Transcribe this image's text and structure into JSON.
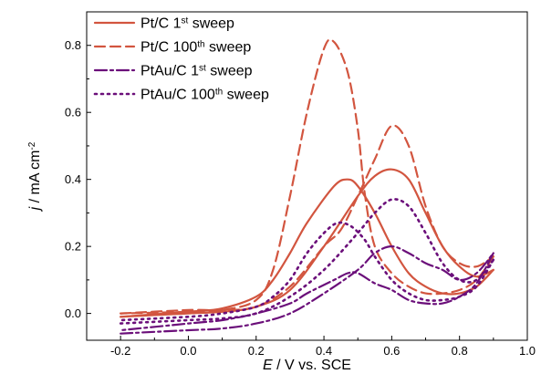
{
  "chart_data": {
    "type": "line",
    "xlabel": {
      "symbol": "E",
      "rest": " / V vs. SCE"
    },
    "ylabel": {
      "symbol": "j",
      "rest": " / mA cm",
      "sup": "-2"
    },
    "xlim": [
      -0.3,
      1.0
    ],
    "ylim": [
      -0.08,
      0.9
    ],
    "x_ticks": [
      -0.2,
      0.0,
      0.2,
      0.4,
      0.6,
      0.8,
      1.0
    ],
    "y_ticks": [
      0.0,
      0.2,
      0.4,
      0.6,
      0.8
    ],
    "x_tick_labels": [
      "-0.2",
      "0.0",
      "0.2",
      "0.4",
      "0.6",
      "0.8",
      "1.0"
    ],
    "y_tick_labels": [
      "0.0",
      "0.2",
      "0.4",
      "0.6",
      "0.8"
    ],
    "grid": false,
    "legend_position": "top-left",
    "series": [
      {
        "name": "Pt/C 1st sweep",
        "label_main": "Pt/C 1",
        "label_sup": "st",
        "label_tail": " sweep",
        "color": "#d2553f",
        "dash": "solid",
        "forward": [
          [
            -0.2,
            -0.01
          ],
          [
            0.0,
            0.0
          ],
          [
            0.1,
            0.005
          ],
          [
            0.2,
            0.02
          ],
          [
            0.3,
            0.07
          ],
          [
            0.4,
            0.2
          ],
          [
            0.5,
            0.35
          ],
          [
            0.55,
            0.41
          ],
          [
            0.6,
            0.43
          ],
          [
            0.65,
            0.4
          ],
          [
            0.7,
            0.3
          ],
          [
            0.75,
            0.2
          ],
          [
            0.8,
            0.14
          ],
          [
            0.85,
            0.11
          ],
          [
            0.9,
            0.13
          ]
        ],
        "reverse": [
          [
            0.9,
            0.13
          ],
          [
            0.85,
            0.08
          ],
          [
            0.8,
            0.06
          ],
          [
            0.75,
            0.06
          ],
          [
            0.7,
            0.08
          ],
          [
            0.65,
            0.12
          ],
          [
            0.6,
            0.2
          ],
          [
            0.55,
            0.3
          ],
          [
            0.5,
            0.38
          ],
          [
            0.47,
            0.4
          ],
          [
            0.43,
            0.38
          ],
          [
            0.35,
            0.27
          ],
          [
            0.3,
            0.18
          ],
          [
            0.25,
            0.1
          ],
          [
            0.2,
            0.05
          ],
          [
            0.1,
            0.015
          ],
          [
            0.0,
            0.005
          ],
          [
            -0.2,
            -0.01
          ]
        ]
      },
      {
        "name": "Pt/C 100th sweep",
        "label_main": "Pt/C 100",
        "label_sup": "th",
        "label_tail": " sweep",
        "color": "#d2553f",
        "dash": "dashed",
        "forward": [
          [
            -0.2,
            0.0
          ],
          [
            0.0,
            0.01
          ],
          [
            0.1,
            0.01
          ],
          [
            0.2,
            0.02
          ],
          [
            0.3,
            0.08
          ],
          [
            0.4,
            0.2
          ],
          [
            0.45,
            0.25
          ],
          [
            0.5,
            0.35
          ],
          [
            0.55,
            0.46
          ],
          [
            0.6,
            0.56
          ],
          [
            0.65,
            0.5
          ],
          [
            0.7,
            0.32
          ],
          [
            0.75,
            0.2
          ],
          [
            0.8,
            0.15
          ],
          [
            0.85,
            0.14
          ],
          [
            0.9,
            0.17
          ]
        ],
        "reverse": [
          [
            0.9,
            0.17
          ],
          [
            0.85,
            0.1
          ],
          [
            0.8,
            0.07
          ],
          [
            0.75,
            0.06
          ],
          [
            0.7,
            0.06
          ],
          [
            0.65,
            0.08
          ],
          [
            0.6,
            0.12
          ],
          [
            0.55,
            0.2
          ],
          [
            0.52,
            0.36
          ],
          [
            0.5,
            0.55
          ],
          [
            0.47,
            0.72
          ],
          [
            0.43,
            0.81
          ],
          [
            0.4,
            0.79
          ],
          [
            0.35,
            0.6
          ],
          [
            0.3,
            0.35
          ],
          [
            0.25,
            0.13
          ],
          [
            0.2,
            0.04
          ],
          [
            0.1,
            0.01
          ],
          [
            0.0,
            0.005
          ],
          [
            -0.2,
            0.0
          ]
        ]
      },
      {
        "name": "PtAu/C 1st sweep",
        "label_main": "PtAu/C 1",
        "label_sup": "st",
        "label_tail": " sweep",
        "color": "#6b0f7a",
        "dash": "dashdot",
        "forward": [
          [
            -0.2,
            -0.06
          ],
          [
            0.0,
            -0.05
          ],
          [
            0.1,
            -0.045
          ],
          [
            0.2,
            -0.03
          ],
          [
            0.3,
            0.0
          ],
          [
            0.4,
            0.06
          ],
          [
            0.5,
            0.13
          ],
          [
            0.55,
            0.18
          ],
          [
            0.6,
            0.2
          ],
          [
            0.65,
            0.18
          ],
          [
            0.7,
            0.15
          ],
          [
            0.75,
            0.13
          ],
          [
            0.8,
            0.1
          ],
          [
            0.85,
            0.12
          ],
          [
            0.9,
            0.18
          ]
        ],
        "reverse": [
          [
            0.9,
            0.18
          ],
          [
            0.85,
            0.09
          ],
          [
            0.8,
            0.05
          ],
          [
            0.75,
            0.03
          ],
          [
            0.7,
            0.03
          ],
          [
            0.65,
            0.04
          ],
          [
            0.6,
            0.07
          ],
          [
            0.55,
            0.09
          ],
          [
            0.5,
            0.12
          ],
          [
            0.47,
            0.12
          ],
          [
            0.43,
            0.1
          ],
          [
            0.35,
            0.06
          ],
          [
            0.3,
            0.03
          ],
          [
            0.2,
            0.0
          ],
          [
            0.1,
            -0.02
          ],
          [
            0.0,
            -0.03
          ],
          [
            -0.2,
            -0.05
          ]
        ]
      },
      {
        "name": "PtAu/C 100th sweep",
        "label_main": "PtAu/C 100",
        "label_sup": "th",
        "label_tail": " sweep",
        "color": "#6b0f7a",
        "dash": "dotted",
        "forward": [
          [
            -0.2,
            -0.03
          ],
          [
            0.0,
            -0.02
          ],
          [
            0.1,
            -0.015
          ],
          [
            0.2,
            0.0
          ],
          [
            0.3,
            0.05
          ],
          [
            0.4,
            0.13
          ],
          [
            0.5,
            0.24
          ],
          [
            0.55,
            0.3
          ],
          [
            0.6,
            0.34
          ],
          [
            0.65,
            0.32
          ],
          [
            0.7,
            0.24
          ],
          [
            0.75,
            0.15
          ],
          [
            0.8,
            0.1
          ],
          [
            0.85,
            0.1
          ],
          [
            0.9,
            0.16
          ]
        ],
        "reverse": [
          [
            0.9,
            0.16
          ],
          [
            0.85,
            0.08
          ],
          [
            0.8,
            0.05
          ],
          [
            0.75,
            0.04
          ],
          [
            0.7,
            0.04
          ],
          [
            0.65,
            0.06
          ],
          [
            0.6,
            0.1
          ],
          [
            0.55,
            0.17
          ],
          [
            0.52,
            0.22
          ],
          [
            0.48,
            0.26
          ],
          [
            0.44,
            0.27
          ],
          [
            0.4,
            0.24
          ],
          [
            0.35,
            0.18
          ],
          [
            0.3,
            0.1
          ],
          [
            0.25,
            0.05
          ],
          [
            0.2,
            0.02
          ],
          [
            0.1,
            0.0
          ],
          [
            0.0,
            -0.01
          ],
          [
            -0.2,
            -0.02
          ]
        ]
      }
    ]
  }
}
